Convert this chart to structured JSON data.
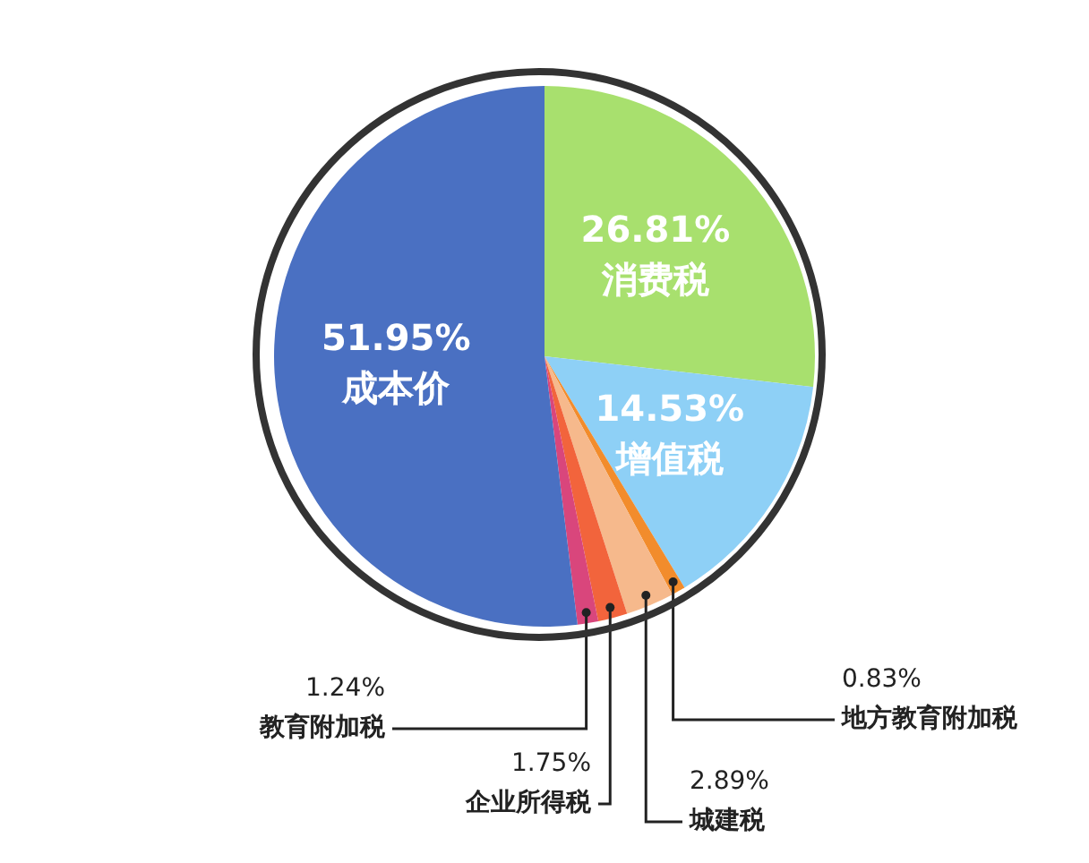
{
  "chart_data": {
    "type": "pie",
    "categories": [
      "消费税",
      "增值税",
      "地方教育附加税",
      "城建税",
      "企业所得税",
      "教育附加税",
      "成本价"
    ],
    "values": [
      26.81,
      14.53,
      0.83,
      2.89,
      1.75,
      1.24,
      51.95
    ],
    "colors": [
      "#a8e06e",
      "#8ed0f6",
      "#f28c2c",
      "#f6b98c",
      "#f2643c",
      "#d9467c",
      "#4a70c2"
    ],
    "value_labels": [
      "26.81%",
      "14.53%",
      "0.83%",
      "2.89%",
      "1.75%",
      "1.24%",
      "51.95%"
    ],
    "legend": false
  }
}
